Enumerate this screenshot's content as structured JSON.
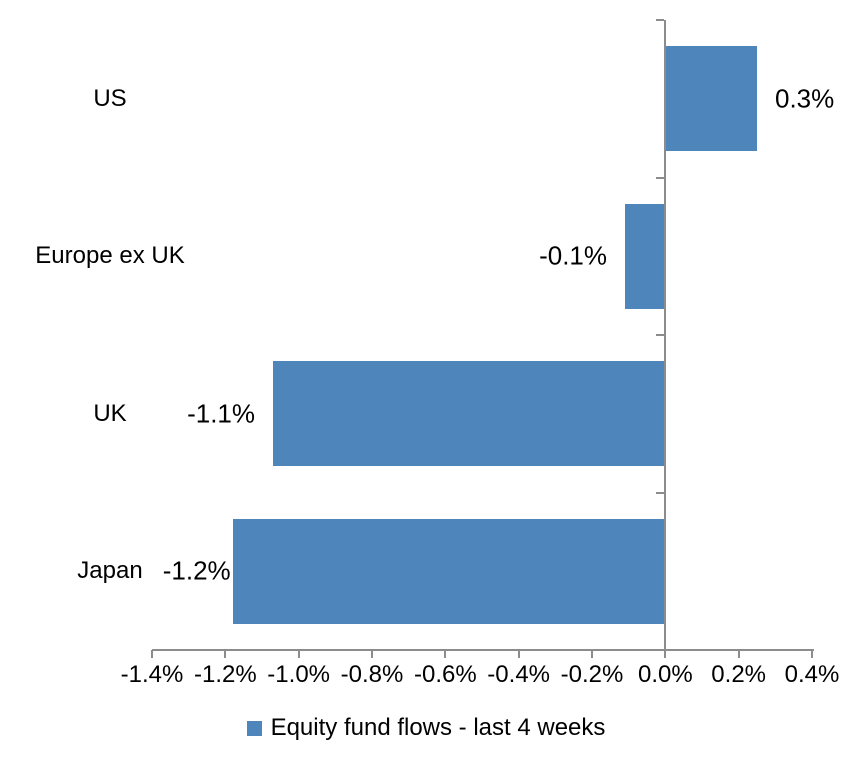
{
  "chart_data": {
    "type": "bar",
    "orientation": "horizontal",
    "title": "",
    "categories": [
      "US",
      "Europe ex UK",
      "UK",
      "Japan"
    ],
    "values": [
      0.25,
      -0.11,
      -1.07,
      -1.18
    ],
    "data_labels": [
      "0.3%",
      "-0.1%",
      "-1.1%",
      "-1.2%"
    ],
    "series_name": "Equity fund flows - last 4 weeks",
    "xlabel": "",
    "ylabel": "",
    "xlim": [
      -1.4,
      0.4
    ],
    "x_ticks": [
      -1.4,
      -1.2,
      -1.0,
      -0.8,
      -0.6,
      -0.4,
      -0.2,
      0.0,
      0.2,
      0.4
    ],
    "x_tick_labels": [
      "-1.4%",
      "-1.2%",
      "-1.0%",
      "-0.8%",
      "-0.6%",
      "-0.4%",
      "-0.2%",
      "0.0%",
      "0.2%",
      "0.4%"
    ],
    "grid": false,
    "legend_position": "bottom",
    "colors": {
      "bar": "#4E86BC",
      "axis": "#8C8C8C",
      "text": "#000000",
      "background": "#FFFFFF"
    }
  }
}
